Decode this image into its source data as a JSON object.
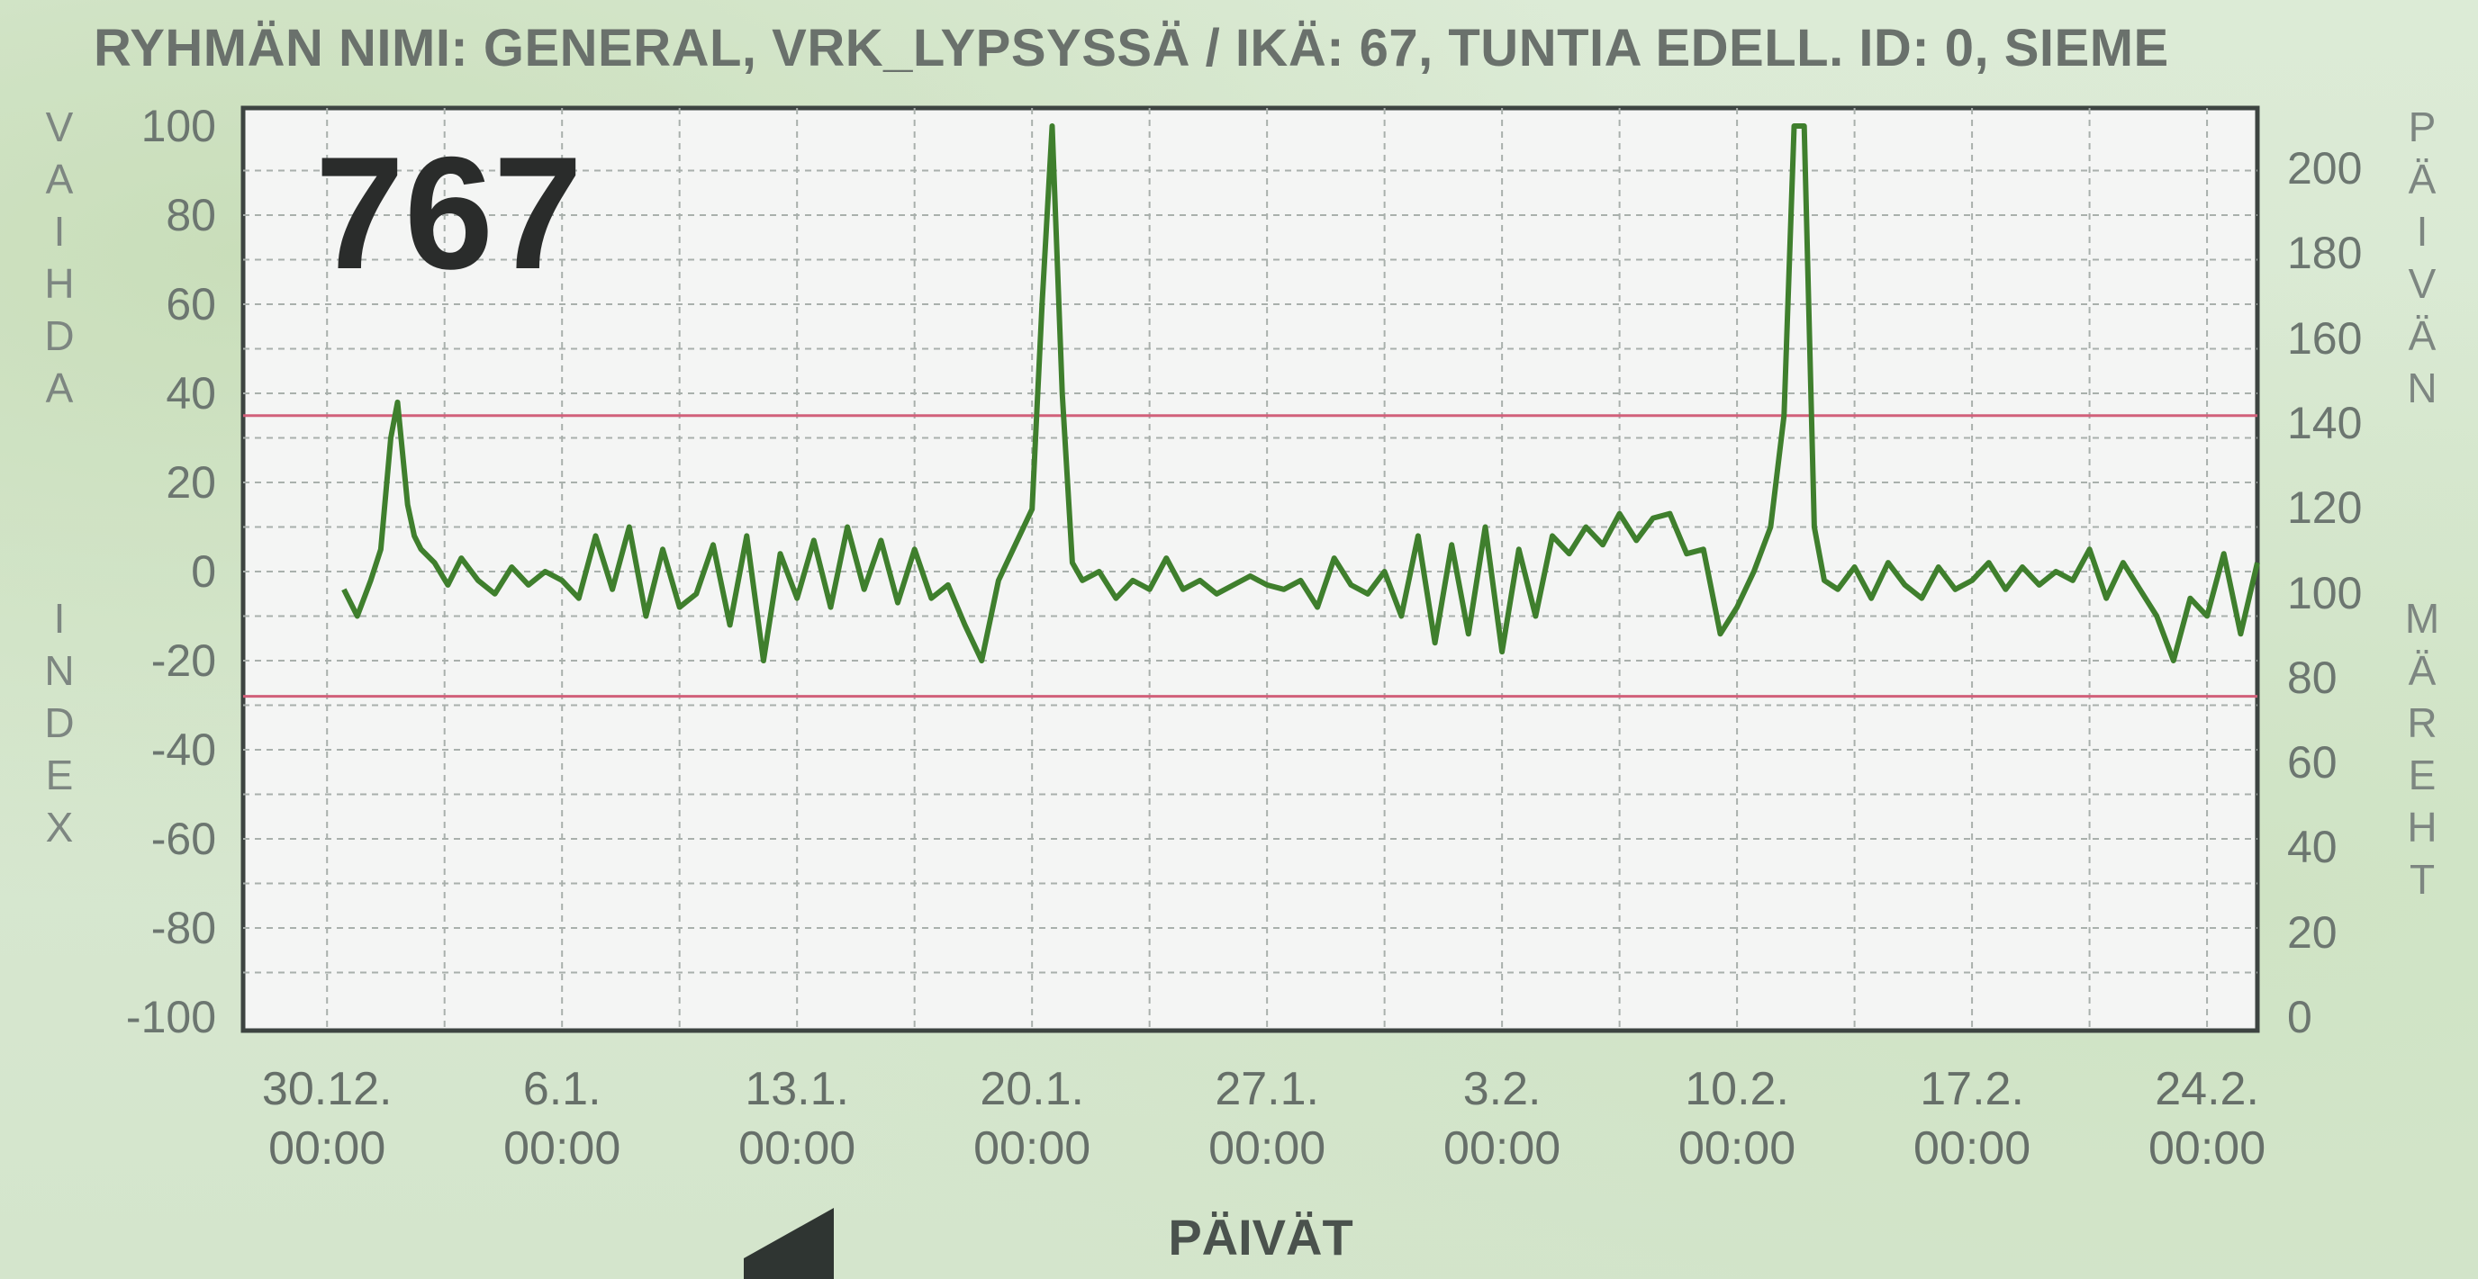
{
  "header": {
    "title": "RYHMÄN NIMI: GENERAL, VRK_LYPSYSSÄ / IKÄ: 67, TUNTIA EDELL. ID: 0, SIEME"
  },
  "current_value": "767",
  "left_axis_title": "VAIHDA INDEX",
  "right_axis_title": "PÄIVÄN MÄREHT",
  "x_axis_label": "PÄIVÄT",
  "colors": {
    "series": "#3f7f2d",
    "threshold": "#d1607a",
    "grid": "#a9b0ac",
    "plot_bg": "#f4f5f4",
    "frame": "#3d4441"
  },
  "icons": {
    "back": "left-triangle-arrow-icon"
  },
  "chart_data": {
    "type": "line",
    "title": "767",
    "xlabel": "PÄIVÄT",
    "ylabel": "VAIHDA INDEX",
    "y2label": "PÄIVÄN MÄREHT",
    "ylim": [
      -100,
      100
    ],
    "y2lim": [
      0,
      210
    ],
    "yticks": [
      100,
      80,
      60,
      40,
      20,
      0,
      -20,
      -40,
      -60,
      -80,
      -100
    ],
    "y2ticks": [
      200,
      180,
      160,
      140,
      120,
      100,
      80,
      60,
      40,
      20,
      0
    ],
    "xlim_days": [
      -2.5,
      57.5
    ],
    "xticks": [
      {
        "day": 0,
        "date": "30.12.",
        "time": "00:00"
      },
      {
        "day": 7,
        "date": "6.1.",
        "time": "00:00"
      },
      {
        "day": 14,
        "date": "13.1.",
        "time": "00:00"
      },
      {
        "day": 21,
        "date": "20.1.",
        "time": "00:00"
      },
      {
        "day": 28,
        "date": "27.1.",
        "time": "00:00"
      },
      {
        "day": 35,
        "date": "3.2.",
        "time": "00:00"
      },
      {
        "day": 42,
        "date": "10.2.",
        "time": "00:00"
      },
      {
        "day": 49,
        "date": "17.2.",
        "time": "00:00"
      },
      {
        "day": 56,
        "date": "24.2.",
        "time": "00:00"
      }
    ],
    "thresholds": [
      35,
      -28
    ],
    "grid": true,
    "series": [
      {
        "name": "Vaihda index",
        "x": [
          0.5,
          0.9,
          1.3,
          1.6,
          1.9,
          2.1,
          2.4,
          2.6,
          2.8,
          3.2,
          3.6,
          4.0,
          4.5,
          5.0,
          5.5,
          6.0,
          6.5,
          7.0,
          7.5,
          8.0,
          8.5,
          9.0,
          9.5,
          10.0,
          10.5,
          11.0,
          11.5,
          12.0,
          12.5,
          13.0,
          13.5,
          14.0,
          14.5,
          15.0,
          15.5,
          16.0,
          16.5,
          17.0,
          17.5,
          18.0,
          18.5,
          19.0,
          19.5,
          20.0,
          20.5,
          21.0,
          21.3,
          21.6,
          21.9,
          22.2,
          22.5,
          23.0,
          23.5,
          24.0,
          24.5,
          25.0,
          25.5,
          26.0,
          26.5,
          27.0,
          27.5,
          28.0,
          28.5,
          29.0,
          29.5,
          30.0,
          30.5,
          31.0,
          31.5,
          32.0,
          32.5,
          33.0,
          33.5,
          34.0,
          34.5,
          35.0,
          35.5,
          36.0,
          36.5,
          37.0,
          37.5,
          38.0,
          38.5,
          39.0,
          39.5,
          40.0,
          40.5,
          41.0,
          41.5,
          42.0,
          42.5,
          43.0,
          43.4,
          43.7,
          44.0,
          44.3,
          44.6,
          45.0,
          45.5,
          46.0,
          46.5,
          47.0,
          47.5,
          48.0,
          48.5,
          49.0,
          49.5,
          50.0,
          50.5,
          51.0,
          51.5,
          52.0,
          52.5,
          53.0,
          53.5,
          54.0,
          54.5,
          55.0,
          55.5,
          56.0,
          56.5,
          57.0,
          57.5
        ],
        "y": [
          -4,
          -10,
          -2,
          5,
          30,
          38,
          15,
          8,
          5,
          2,
          -3,
          3,
          -2,
          -5,
          1,
          -3,
          0,
          -2,
          -6,
          8,
          -4,
          10,
          -10,
          5,
          -8,
          -5,
          6,
          -12,
          8,
          -20,
          4,
          -6,
          7,
          -8,
          10,
          -4,
          7,
          -7,
          5,
          -6,
          -3,
          -12,
          -20,
          -2,
          6,
          14,
          60,
          100,
          40,
          2,
          -2,
          0,
          -6,
          -2,
          -4,
          3,
          -4,
          -2,
          -5,
          -3,
          -1,
          -3,
          -4,
          -2,
          -8,
          3,
          -3,
          -5,
          0,
          -10,
          8,
          -16,
          6,
          -14,
          10,
          -18,
          5,
          -10,
          8,
          4,
          10,
          6,
          13,
          7,
          12,
          13,
          4,
          5,
          -14,
          -8,
          0,
          10,
          35,
          100,
          100,
          10,
          -2,
          -4,
          1,
          -6,
          2,
          -3,
          -6,
          1,
          -4,
          -2,
          2,
          -4,
          1,
          -3,
          0,
          -2,
          5,
          -6,
          2,
          -4,
          -10,
          -20,
          -6,
          -10,
          4,
          -14,
          2
        ]
      }
    ]
  }
}
